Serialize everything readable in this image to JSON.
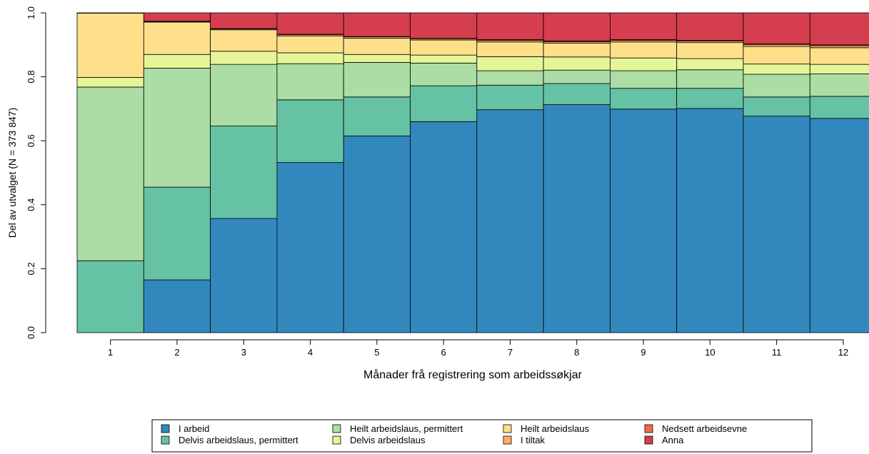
{
  "chart_data": {
    "type": "bar",
    "stacked": true,
    "normalized": true,
    "xlabel": "Månader frå registrering som arbeidssøkjar",
    "ylabel": "Del av utvalget (N = 373 847)",
    "ylim": [
      0,
      1
    ],
    "yticks": [
      "0.0",
      "0.2",
      "0.4",
      "0.6",
      "0.8",
      "1.0"
    ],
    "categories": [
      "1",
      "2",
      "3",
      "4",
      "5",
      "6",
      "7",
      "8",
      "9",
      "10",
      "11",
      "12"
    ],
    "grid": false,
    "legend": "bottom",
    "series": [
      {
        "name": "I arbeid",
        "color": "#3288bd",
        "values": [
          0.0,
          0.165,
          0.357,
          0.532,
          0.615,
          0.66,
          0.697,
          0.713,
          0.699,
          0.701,
          0.677,
          0.67
        ]
      },
      {
        "name": "Delvis arbeidslaus, permittert",
        "color": "#66c2a5",
        "values": [
          0.225,
          0.29,
          0.289,
          0.196,
          0.122,
          0.112,
          0.077,
          0.066,
          0.065,
          0.063,
          0.06,
          0.069
        ]
      },
      {
        "name": "Heilt arbeidslaus, permittert",
        "color": "#abdda4",
        "values": [
          0.543,
          0.372,
          0.193,
          0.113,
          0.108,
          0.071,
          0.045,
          0.042,
          0.055,
          0.058,
          0.071,
          0.07
        ]
      },
      {
        "name": "Delvis arbeidslaus",
        "color": "#e6f598",
        "values": [
          0.03,
          0.043,
          0.041,
          0.034,
          0.025,
          0.025,
          0.044,
          0.041,
          0.04,
          0.035,
          0.032,
          0.03
        ]
      },
      {
        "name": "Heilt arbeidslaus",
        "color": "#fee08b",
        "values": [
          0.201,
          0.101,
          0.067,
          0.053,
          0.051,
          0.047,
          0.046,
          0.043,
          0.05,
          0.05,
          0.055,
          0.052
        ]
      },
      {
        "name": "I tiltak",
        "color": "#fdae61",
        "values": [
          0.0,
          0.002,
          0.003,
          0.004,
          0.004,
          0.004,
          0.005,
          0.005,
          0.005,
          0.005,
          0.006,
          0.006
        ]
      },
      {
        "name": "Nedsett arbeidsevne",
        "color": "#f46d43",
        "values": [
          0.0,
          0.001,
          0.001,
          0.001,
          0.001,
          0.001,
          0.002,
          0.002,
          0.002,
          0.002,
          0.003,
          0.003
        ]
      },
      {
        "name": "Anna",
        "color": "#d53e4f",
        "values": [
          0.001,
          0.026,
          0.049,
          0.067,
          0.074,
          0.08,
          0.084,
          0.088,
          0.084,
          0.086,
          0.096,
          0.1
        ]
      }
    ]
  }
}
